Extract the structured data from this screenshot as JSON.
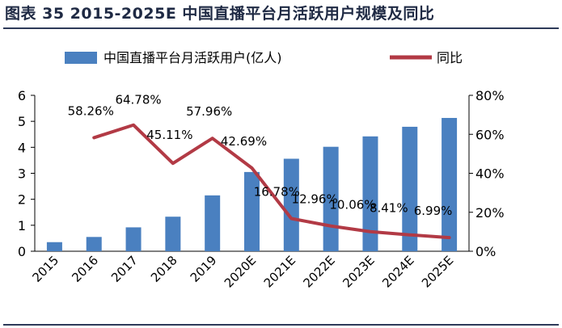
{
  "figure": {
    "title": "图表 35 2015-2025E 中国直播平台月活跃用户规模及同比"
  },
  "colors": {
    "bar": "#4a80c0",
    "line": "#b23a45",
    "title_rule": "#2e3a59",
    "text": "#000000"
  },
  "chart_data": {
    "type": "bar",
    "categories": [
      "2015",
      "2016",
      "2017",
      "2018",
      "2019",
      "2020E",
      "2021E",
      "2022E",
      "2023E",
      "2024E",
      "2025E"
    ],
    "series": [
      {
        "name": "中国直播平台月活跃用户(亿人)",
        "type": "bar",
        "axis": "left",
        "values": [
          0.35,
          0.55,
          0.92,
          1.33,
          2.15,
          3.05,
          3.56,
          4.02,
          4.42,
          4.79,
          5.13
        ]
      },
      {
        "name": "同比",
        "type": "line",
        "axis": "right",
        "values": [
          null,
          58.26,
          64.78,
          45.11,
          57.96,
          42.69,
          16.78,
          12.96,
          10.06,
          8.41,
          6.99
        ],
        "labels": [
          null,
          "58.26%",
          "64.78%",
          "45.11%",
          "57.96%",
          "42.69%",
          "16.78%",
          "12.96%",
          "10.06%",
          "8.41%",
          "6.99%"
        ]
      }
    ],
    "y_left": {
      "min": 0,
      "max": 6,
      "ticks": [
        "0",
        "1",
        "2",
        "3",
        "4",
        "5",
        "6"
      ]
    },
    "y_right": {
      "min": 0,
      "max": 80,
      "ticks": [
        "0%",
        "20%",
        "40%",
        "60%",
        "80%"
      ]
    },
    "legend": "top",
    "grid": false
  }
}
